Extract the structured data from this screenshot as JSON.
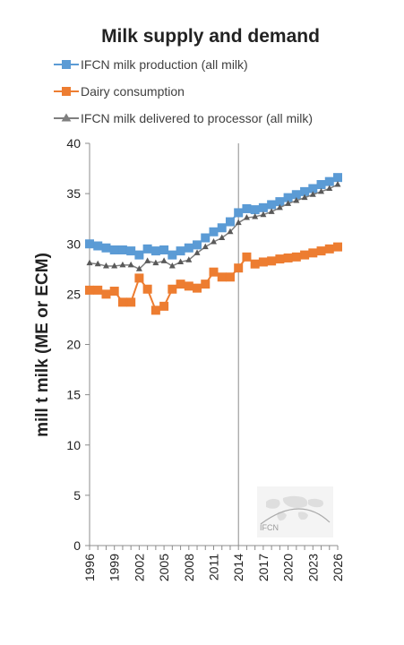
{
  "chart_data": {
    "type": "line",
    "title": "Milk supply and demand",
    "ylabel": "mill t milk (ME or ECM)",
    "xlabel": "",
    "ylim": [
      0,
      40
    ],
    "yticks": [
      0,
      5,
      10,
      15,
      20,
      25,
      30,
      35,
      40
    ],
    "xlim": [
      1996,
      2026
    ],
    "xticks": [
      1996,
      1999,
      2002,
      2005,
      2008,
      2011,
      2014,
      2017,
      2020,
      2023,
      2026
    ],
    "x": [
      1996,
      1997,
      1998,
      1999,
      2000,
      2001,
      2002,
      2003,
      2004,
      2005,
      2006,
      2007,
      2008,
      2009,
      2010,
      2011,
      2012,
      2013,
      2014,
      2015,
      2016,
      2017,
      2018,
      2019,
      2020,
      2021,
      2022,
      2023,
      2024,
      2025,
      2026
    ],
    "divider_year": 2014,
    "legend_position": "top",
    "grid": false,
    "series": [
      {
        "name": "IFCN milk production (all milk)",
        "color": "#5b9bd5",
        "marker": "square",
        "values": [
          30.0,
          29.8,
          29.6,
          29.4,
          29.4,
          29.3,
          28.9,
          29.5,
          29.3,
          29.4,
          28.9,
          29.3,
          29.6,
          29.9,
          30.6,
          31.2,
          31.6,
          32.2,
          33.1,
          33.5,
          33.4,
          33.6,
          33.9,
          34.2,
          34.6,
          34.9,
          35.2,
          35.5,
          35.9,
          36.2,
          36.6
        ]
      },
      {
        "name": "Dairy consumption",
        "color": "#ed7d31",
        "marker": "square",
        "values": [
          25.4,
          25.4,
          25.0,
          25.3,
          24.2,
          24.2,
          26.6,
          25.5,
          23.4,
          23.8,
          25.5,
          26.0,
          25.8,
          25.6,
          26.0,
          27.2,
          26.7,
          26.7,
          27.6,
          28.7,
          28.0,
          28.2,
          28.3,
          28.5,
          28.6,
          28.7,
          28.9,
          29.1,
          29.3,
          29.5,
          29.7
        ]
      },
      {
        "name": "IFCN milk delivered to processor (all milk)",
        "color": "#7f7f7f",
        "marker": "triangle",
        "values": [
          28.1,
          28.0,
          27.8,
          27.8,
          27.9,
          27.9,
          27.5,
          28.3,
          28.1,
          28.3,
          27.8,
          28.2,
          28.4,
          29.1,
          29.7,
          30.2,
          30.6,
          31.2,
          32.1,
          32.6,
          32.7,
          32.9,
          33.2,
          33.6,
          34.0,
          34.3,
          34.6,
          34.9,
          35.2,
          35.5,
          35.9
        ]
      }
    ]
  },
  "watermark": {
    "text": "IFCN"
  }
}
